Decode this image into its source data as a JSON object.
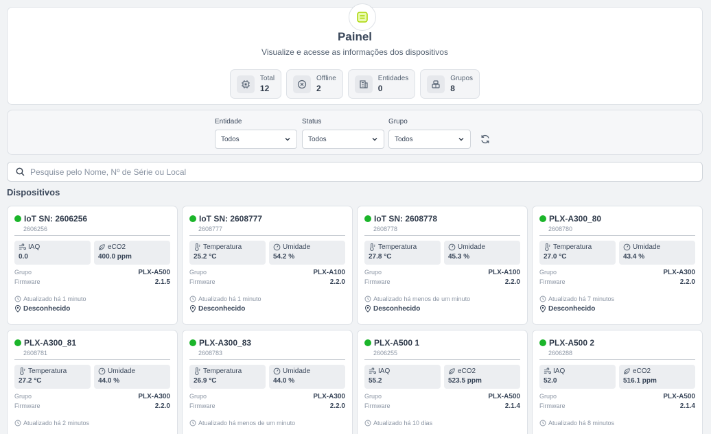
{
  "panel": {
    "title": "Painel",
    "subtitle": "Visualize e acesse as informações dos dispositivos",
    "stats": [
      {
        "label": "Total",
        "value": "12",
        "icon": "chip-icon"
      },
      {
        "label": "Offline",
        "value": "2",
        "icon": "x-circle-icon"
      },
      {
        "label": "Entidades",
        "value": "0",
        "icon": "building-icon"
      },
      {
        "label": "Grupos",
        "value": "8",
        "icon": "group-icon"
      }
    ]
  },
  "filters": {
    "entidade": {
      "label": "Entidade",
      "value": "Todos"
    },
    "status": {
      "label": "Status",
      "value": "Todos"
    },
    "grupo": {
      "label": "Grupo",
      "value": "Todos"
    }
  },
  "search": {
    "placeholder": "Pesquise pelo Nome, Nº de Série ou Local"
  },
  "section_title": "Dispositivos",
  "card_labels": {
    "group": "Grupo",
    "firmware": "Firmware"
  },
  "status_color": "#1bb52a",
  "devices": [
    {
      "name": "IoT SN: 2606256",
      "serial": "2606256",
      "m1": {
        "label": "IAQ",
        "value": "0.0",
        "icon": "air-icon"
      },
      "m2": {
        "label": "eCO2",
        "value": "400.0 ppm",
        "icon": "leaf-icon"
      },
      "group": "PLX-A500",
      "firmware": "2.1.5",
      "updated": "Atualizado há 1 minuto",
      "location": "Desconhecido"
    },
    {
      "name": "IoT SN: 2608777",
      "serial": "2608777",
      "m1": {
        "label": "Temperatura",
        "value": "25.2 °C",
        "icon": "thermometer-icon"
      },
      "m2": {
        "label": "Umidade",
        "value": "54.2 %",
        "icon": "gauge-icon"
      },
      "group": "PLX-A100",
      "firmware": "2.2.0",
      "updated": "Atualizado há 1 minuto",
      "location": "Desconhecido"
    },
    {
      "name": "IoT SN: 2608778",
      "serial": "2608778",
      "m1": {
        "label": "Temperatura",
        "value": "27.8 °C",
        "icon": "thermometer-icon"
      },
      "m2": {
        "label": "Umidade",
        "value": "45.3 %",
        "icon": "gauge-icon"
      },
      "group": "PLX-A100",
      "firmware": "2.2.0",
      "updated": "Atualizado há menos de um minuto",
      "location": "Desconhecido"
    },
    {
      "name": "PLX-A300_80",
      "serial": "2608780",
      "m1": {
        "label": "Temperatura",
        "value": "27.0 °C",
        "icon": "thermometer-icon"
      },
      "m2": {
        "label": "Umidade",
        "value": "43.4 %",
        "icon": "gauge-icon"
      },
      "group": "PLX-A300",
      "firmware": "2.2.0",
      "updated": "Atualizado há 7 minutos",
      "location": "Desconhecido"
    },
    {
      "name": "PLX-A300_81",
      "serial": "2608781",
      "m1": {
        "label": "Temperatura",
        "value": "27.2 °C",
        "icon": "thermometer-icon"
      },
      "m2": {
        "label": "Umidade",
        "value": "44.0 %",
        "icon": "gauge-icon"
      },
      "group": "PLX-A300",
      "firmware": "2.2.0",
      "updated": "Atualizado há 2 minutos",
      "location": ""
    },
    {
      "name": "PLX-A300_83",
      "serial": "2608783",
      "m1": {
        "label": "Temperatura",
        "value": "26.9 °C",
        "icon": "thermometer-icon"
      },
      "m2": {
        "label": "Umidade",
        "value": "44.0 %",
        "icon": "gauge-icon"
      },
      "group": "PLX-A300",
      "firmware": "2.2.0",
      "updated": "Atualizado há menos de um minuto",
      "location": ""
    },
    {
      "name": "PLX-A500 1",
      "serial": "2606255",
      "m1": {
        "label": "IAQ",
        "value": "55.2",
        "icon": "air-icon"
      },
      "m2": {
        "label": "eCO2",
        "value": "523.5 ppm",
        "icon": "leaf-icon"
      },
      "group": "PLX-A500",
      "firmware": "2.1.4",
      "updated": "Atualizado há 10 dias",
      "location": ""
    },
    {
      "name": "PLX-A500 2",
      "serial": "2606288",
      "m1": {
        "label": "IAQ",
        "value": "52.0",
        "icon": "air-icon"
      },
      "m2": {
        "label": "eCO2",
        "value": "516.1 ppm",
        "icon": "leaf-icon"
      },
      "group": "PLX-A500",
      "firmware": "2.1.4",
      "updated": "Atualizado há 8 minutos",
      "location": ""
    }
  ]
}
